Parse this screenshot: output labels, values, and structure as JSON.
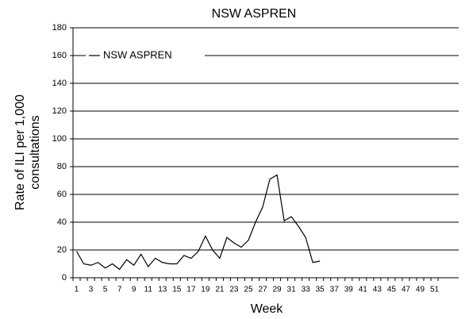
{
  "chart_data": {
    "type": "line",
    "title": "NSW ASPREN",
    "xlabel": "Week",
    "ylabel": [
      "Rate of ILI per 1,000",
      "consultations"
    ],
    "categories": [
      1,
      null,
      3,
      null,
      5,
      null,
      7,
      null,
      9,
      null,
      11,
      null,
      13,
      null,
      15,
      null,
      17,
      null,
      19,
      null,
      21,
      null,
      23,
      null,
      25,
      null,
      27,
      null,
      29,
      null,
      31,
      null,
      33,
      null,
      35,
      null,
      37,
      null,
      39,
      null,
      41,
      null,
      43,
      null,
      45,
      null,
      47,
      null,
      49,
      null,
      51,
      null
    ],
    "series": [
      {
        "name": "NSW ASPREN",
        "color": "#000000",
        "values": [
          19,
          10,
          9,
          11,
          7,
          10,
          6,
          13,
          9,
          17,
          8,
          14,
          11,
          10,
          10,
          16,
          14,
          19,
          30,
          20,
          14,
          29,
          25,
          22,
          27,
          40,
          51,
          71,
          74,
          41,
          44,
          37,
          29,
          11,
          12,
          null,
          null,
          null,
          null,
          null,
          null,
          null,
          null,
          null,
          null,
          null,
          null,
          null,
          null,
          null,
          null,
          null
        ]
      }
    ],
    "ylim": [
      0,
      180
    ],
    "yticks": [
      0,
      20,
      40,
      60,
      80,
      100,
      120,
      140,
      160,
      180
    ],
    "grid": true,
    "legend": "upper left"
  }
}
